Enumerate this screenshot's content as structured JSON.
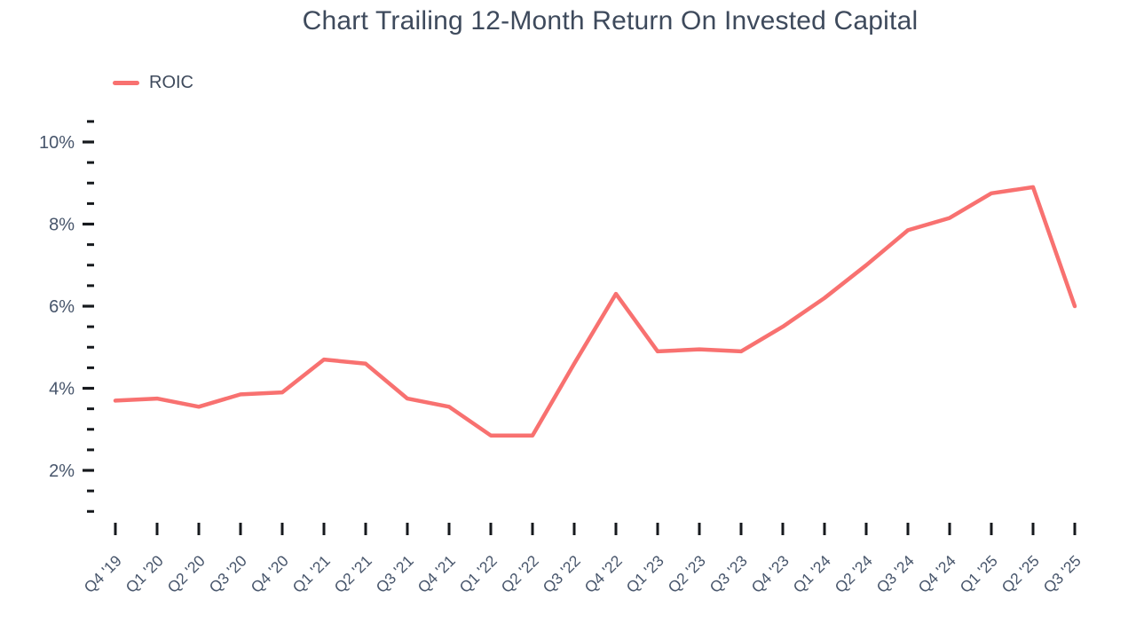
{
  "colors": {
    "accent": "#f87170",
    "title_text": "#3e4a5c",
    "axis_text": "#47556b",
    "tick_mark": "#16191d",
    "background": "#ffffff"
  },
  "chart_data": {
    "type": "line",
    "title": "Chart Trailing 12-Month Return On Invested Capital",
    "categories": [
      "Q4 '19",
      "Q1 '20",
      "Q2 '20",
      "Q3 '20",
      "Q4 '20",
      "Q1 '21",
      "Q2 '21",
      "Q3 '21",
      "Q4 '21",
      "Q1 '22",
      "Q2 '22",
      "Q3 '22",
      "Q4 '22",
      "Q1 '23",
      "Q2 '23",
      "Q3 '23",
      "Q4 '23",
      "Q1 '24",
      "Q2 '24",
      "Q3 '24",
      "Q4 '24",
      "Q1 '25",
      "Q2 '25",
      "Q3 '25"
    ],
    "series": [
      {
        "name": "ROIC",
        "color": "#f87170",
        "values": [
          3.7,
          3.75,
          3.55,
          3.85,
          3.9,
          4.7,
          4.6,
          3.75,
          3.55,
          2.85,
          2.85,
          4.6,
          6.3,
          4.9,
          4.95,
          4.9,
          5.5,
          6.2,
          7.0,
          7.85,
          8.15,
          8.75,
          8.9,
          6.0
        ]
      }
    ],
    "xlabel": "",
    "ylabel": "",
    "y_axis": {
      "unit": "%",
      "min": 1.0,
      "max": 10.5,
      "minor_tick_step": 0.5,
      "major_ticks": [
        2,
        4,
        6,
        8,
        10
      ],
      "tick_labels": [
        "2%",
        "4%",
        "6%",
        "8%",
        "10%"
      ]
    },
    "x_axis": {
      "tick_rotation_deg": 45
    },
    "grid": false,
    "legend_position": "top-left"
  }
}
